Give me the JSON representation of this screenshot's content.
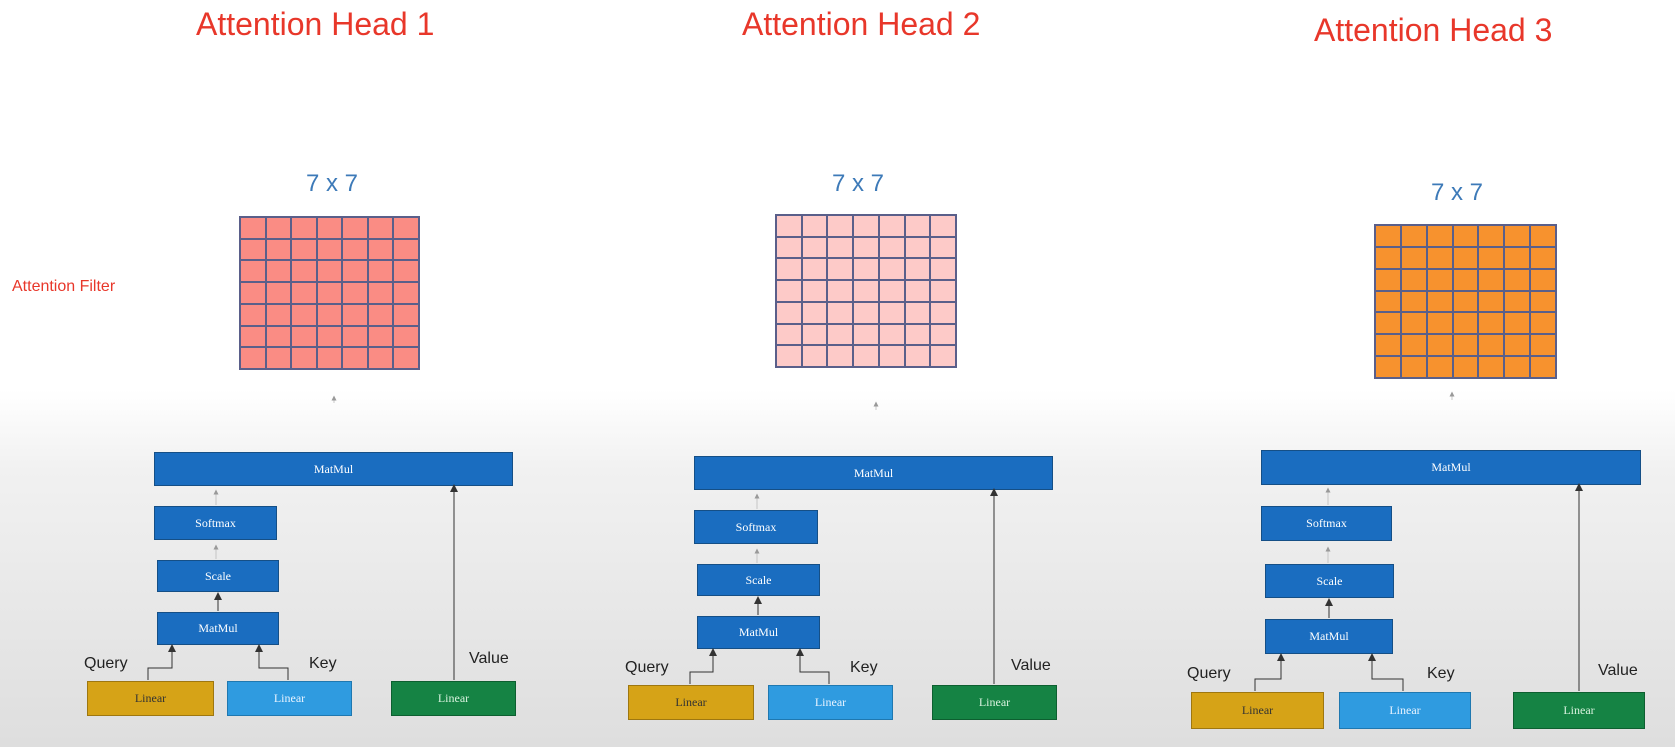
{
  "side_label": "Attention Filter",
  "colors": {
    "title": "#e8372a",
    "dim": "#3d7ab8",
    "matmul": "#1a6dc0",
    "linear_query": "#d6a317",
    "linear_key": "#2f9be0",
    "linear_value": "#158344"
  },
  "heads": [
    {
      "title": "Attention Head 1",
      "dim": "7 x 7",
      "grid_color": "#fa8c84",
      "matmul_top": "MatMul",
      "softmax": "Softmax",
      "scale": "Scale",
      "matmul_bottom": "MatMul",
      "query_label": "Query",
      "key_label": "Key",
      "value_label": "Value",
      "linear_q": "Linear",
      "linear_k": "Linear",
      "linear_v": "Linear"
    },
    {
      "title": "Attention Head 2",
      "dim": "7 x 7",
      "grid_color": "#fdcac8",
      "matmul_top": "MatMul",
      "softmax": "Softmax",
      "scale": "Scale",
      "matmul_bottom": "MatMul",
      "query_label": "Query",
      "key_label": "Key",
      "value_label": "Value",
      "linear_q": "Linear",
      "linear_k": "Linear",
      "linear_v": "Linear"
    },
    {
      "title": "Attention Head 3",
      "dim": "7 x 7",
      "grid_color": "#f7922e",
      "matmul_top": "MatMul",
      "softmax": "Softmax",
      "scale": "Scale",
      "matmul_bottom": "MatMul",
      "query_label": "Query",
      "key_label": "Key",
      "value_label": "Value",
      "linear_q": "Linear",
      "linear_k": "Linear",
      "linear_v": "Linear"
    }
  ]
}
